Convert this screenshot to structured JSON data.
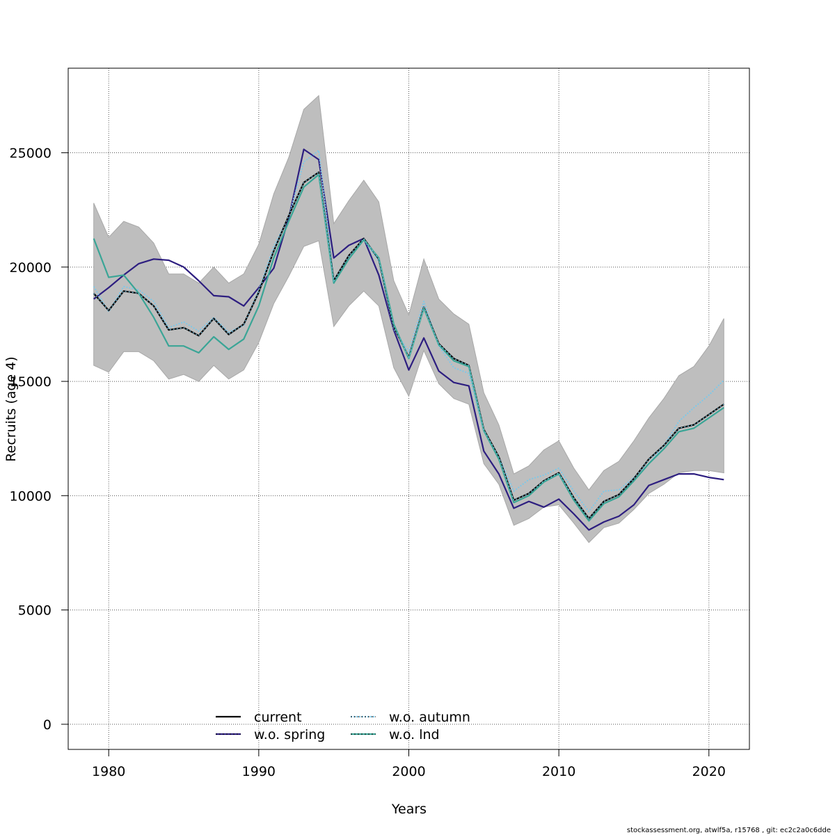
{
  "chart_data": {
    "type": "line",
    "title": "",
    "xlabel": "Years",
    "ylabel": "Recruits (age 4)",
    "xlim": [
      1977.3,
      2022.7
    ],
    "ylim": [
      -1100,
      28700
    ],
    "x_ticks": [
      1980,
      1990,
      2000,
      2010,
      2020
    ],
    "y_ticks": [
      0,
      5000,
      10000,
      15000,
      20000,
      25000
    ],
    "grid": true,
    "legend_position": "bottom-center",
    "years": [
      1979,
      1980,
      1981,
      1982,
      1983,
      1984,
      1985,
      1986,
      1987,
      1988,
      1989,
      1990,
      1991,
      1992,
      1993,
      1994,
      1995,
      1996,
      1997,
      1998,
      1999,
      2000,
      2001,
      2002,
      2003,
      2004,
      2005,
      2006,
      2007,
      2008,
      2009,
      2010,
      2011,
      2012,
      2013,
      2014,
      2015,
      2016,
      2017,
      2018,
      2019,
      2020,
      2021
    ],
    "confidence_band": {
      "name": "current CI",
      "color": "#bebebe",
      "upper": [
        22800,
        21300,
        22000,
        21750,
        21050,
        19700,
        19700,
        19300,
        20000,
        19300,
        19700,
        21000,
        23200,
        24800,
        26900,
        27500,
        21900,
        22900,
        23800,
        22850,
        19400,
        17900,
        20350,
        18600,
        17950,
        17500,
        14500,
        13100,
        10950,
        11300,
        12000,
        12400,
        11200,
        10250,
        11100,
        11500,
        12400,
        13400,
        14250,
        15250,
        15650,
        16550,
        17750
      ],
      "lower": [
        15700,
        15400,
        16300,
        16300,
        15900,
        15100,
        15300,
        15000,
        15700,
        15100,
        15500,
        16700,
        18400,
        19600,
        20900,
        21150,
        17400,
        18300,
        18950,
        18300,
        15600,
        14350,
        16350,
        14900,
        14250,
        14000,
        11400,
        10500,
        8700,
        9000,
        9500,
        9600,
        8800,
        7950,
        8600,
        8800,
        9400,
        10100,
        10500,
        11000,
        11100,
        11100,
        11000
      ],
      "hidden_legend": true
    },
    "series": [
      {
        "name": "current",
        "color": "#000000",
        "style": "solid",
        "values": [
          18850,
          18100,
          18950,
          18850,
          18300,
          17250,
          17350,
          17000,
          17750,
          17050,
          17500,
          18900,
          20700,
          22250,
          23700,
          24150,
          19400,
          20500,
          21250,
          20350,
          17400,
          16050,
          18250,
          16650,
          16000,
          15700,
          12900,
          11700,
          9800,
          10100,
          10650,
          11000,
          9900,
          9000,
          9750,
          10050,
          10750,
          11600,
          12200,
          12950,
          13100,
          13550,
          14000
        ]
      },
      {
        "name": "w.o. spring",
        "color": "#2d1e80",
        "style": "solid",
        "values": [
          18600,
          19100,
          19650,
          20150,
          20350,
          20300,
          20000,
          19400,
          18750,
          18700,
          18300,
          19100,
          19950,
          22150,
          25150,
          24700,
          20400,
          20950,
          21250,
          19650,
          17250,
          15500,
          16900,
          15450,
          14950,
          14800,
          11950,
          10950,
          9450,
          9750,
          9500,
          9850,
          9200,
          8500,
          8850,
          9100,
          9600,
          10450,
          10700,
          10950,
          10950,
          10800,
          10700
        ]
      },
      {
        "name": "w.o. autumn",
        "color": "#7ec8e8",
        "style": "dotted",
        "values": [
          19150,
          18050,
          19150,
          19000,
          18500,
          17350,
          17600,
          17200,
          17800,
          17150,
          17450,
          19000,
          20900,
          22200,
          24600,
          25100,
          19450,
          20400,
          21200,
          20250,
          17300,
          16300,
          18500,
          16550,
          15600,
          15350,
          12800,
          11700,
          10200,
          10700,
          10900,
          11200,
          10200,
          9300,
          10200,
          10250,
          10800,
          11400,
          12200,
          13250,
          13850,
          14400,
          15050
        ]
      },
      {
        "name": "w.o. lnd",
        "color": "#3aa596",
        "style": "solid",
        "values": [
          21250,
          19550,
          19650,
          18850,
          17800,
          16550,
          16550,
          16250,
          16950,
          16400,
          16850,
          18300,
          20400,
          22000,
          23500,
          24050,
          19300,
          20350,
          21200,
          20400,
          17500,
          16000,
          18200,
          16600,
          15900,
          15650,
          12850,
          11600,
          9700,
          10000,
          10600,
          10950,
          9800,
          8900,
          9650,
          9950,
          10650,
          11400,
          12050,
          12800,
          12950,
          13400,
          13850
        ]
      }
    ]
  },
  "legend": {
    "items": [
      {
        "label": "current",
        "color": "#000000",
        "style": "solid"
      },
      {
        "label": "w.o. spring",
        "color": "#2d1e80",
        "style": "solid"
      },
      {
        "label": "w.o. autumn",
        "color": "#7ec8e8",
        "style": "dotted"
      },
      {
        "label": "w.o. lnd",
        "color": "#3aa596",
        "style": "solid"
      }
    ]
  },
  "footer": {
    "text": "stockassessment.org, atwlf5a, r15768 , git: ec2c2a0c6dde"
  }
}
